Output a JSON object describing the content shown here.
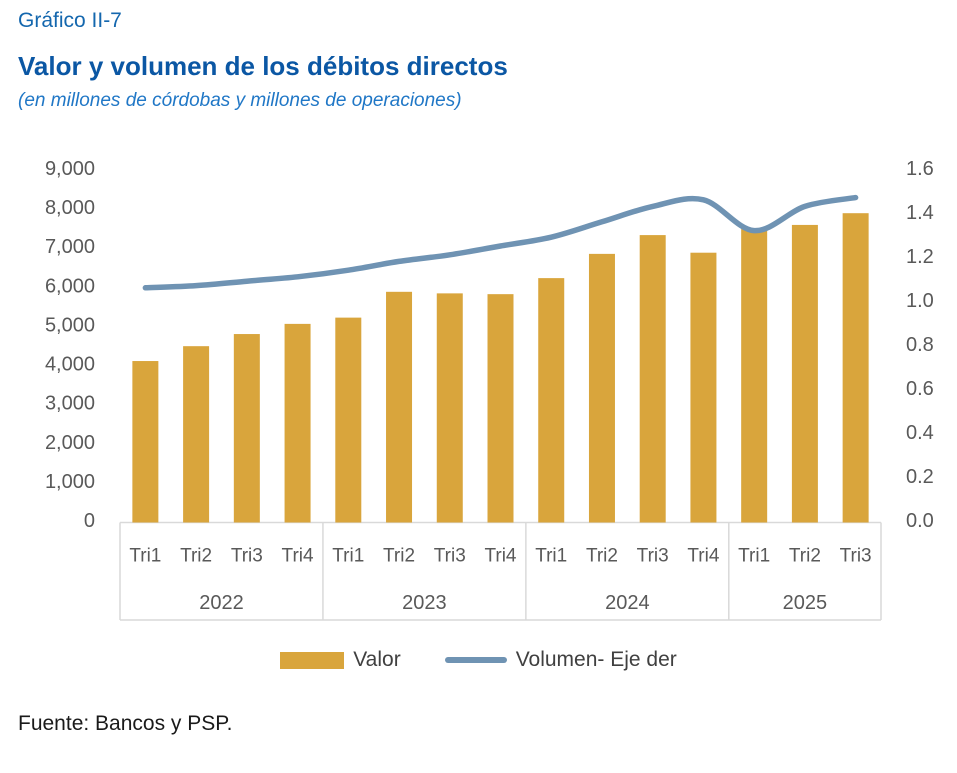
{
  "header": {
    "caption": "Gráfico II-7",
    "title": "Valor y volumen de los débitos directos",
    "subtitle": "(en millones de córdobas y millones de operaciones)"
  },
  "legend": {
    "valor_label": "Valor",
    "volumen_label": "Volumen- Eje der"
  },
  "footer": {
    "source": "Fuente: Bancos y PSP."
  },
  "colors": {
    "bar_gold": "#D9A53C",
    "line_blue": "#6F93B3",
    "caption_blue": "#1467AE",
    "title_blue": "#0B57A4",
    "subtitle_blue": "#2077C6",
    "axis_text": "#595959",
    "frame_gray": "#D9D9D9",
    "legend_text": "#404040",
    "footer_text": "#1A1A1A"
  },
  "chart_data": {
    "type": "combo",
    "title": "Valor y volumen de los débitos directos",
    "subtitle": "(en millones de córdobas y millones de operaciones)",
    "grid": false,
    "legend_position": "bottom",
    "year_groups": [
      {
        "year": "2022",
        "quarters": [
          "Tri1",
          "Tri2",
          "Tri3",
          "Tri4"
        ]
      },
      {
        "year": "2023",
        "quarters": [
          "Tri1",
          "Tri2",
          "Tri3",
          "Tri4"
        ]
      },
      {
        "year": "2024",
        "quarters": [
          "Tri1",
          "Tri2",
          "Tri3",
          "Tri4"
        ]
      },
      {
        "year": "2025",
        "quarters": [
          "Tri1",
          "Tri2",
          "Tri3"
        ]
      }
    ],
    "left_axis": {
      "min": 0,
      "max": 9000,
      "step": 1000,
      "format": "thousands"
    },
    "right_axis": {
      "min": 0,
      "max": 1.6,
      "step": 0.2,
      "format": "one_decimal"
    },
    "series": [
      {
        "name": "Valor",
        "type": "bar",
        "axis": "left",
        "values": [
          4090,
          4470,
          4780,
          5040,
          5200,
          5860,
          5820,
          5800,
          6210,
          6830,
          7310,
          6860,
          7480,
          7570,
          7870
        ]
      },
      {
        "name": "Volumen- Eje der",
        "type": "line",
        "axis": "right",
        "values": [
          1.06,
          1.07,
          1.09,
          1.11,
          1.14,
          1.18,
          1.21,
          1.25,
          1.29,
          1.36,
          1.43,
          1.46,
          1.32,
          1.43,
          1.47
        ]
      }
    ]
  }
}
